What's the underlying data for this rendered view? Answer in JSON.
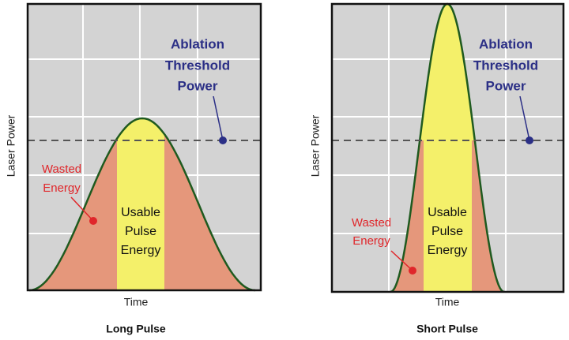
{
  "panels": [
    {
      "y_label": "Laser Power",
      "x_label": "Time",
      "caption": "Long Pulse",
      "threshold_label": [
        "Ablation",
        "Threshold",
        "Power"
      ],
      "wasted_label": [
        "Wasted",
        "Energy"
      ],
      "usable_label": [
        "Usable",
        "Pulse",
        "Energy"
      ]
    },
    {
      "y_label": "Laser Power",
      "x_label": "Time",
      "caption": "Short Pulse",
      "threshold_label": [
        "Ablation",
        "Threshold",
        "Power"
      ],
      "wasted_label": [
        "Wasted",
        "Energy"
      ],
      "usable_label": [
        "Usable",
        "Pulse",
        "Energy"
      ]
    }
  ]
}
